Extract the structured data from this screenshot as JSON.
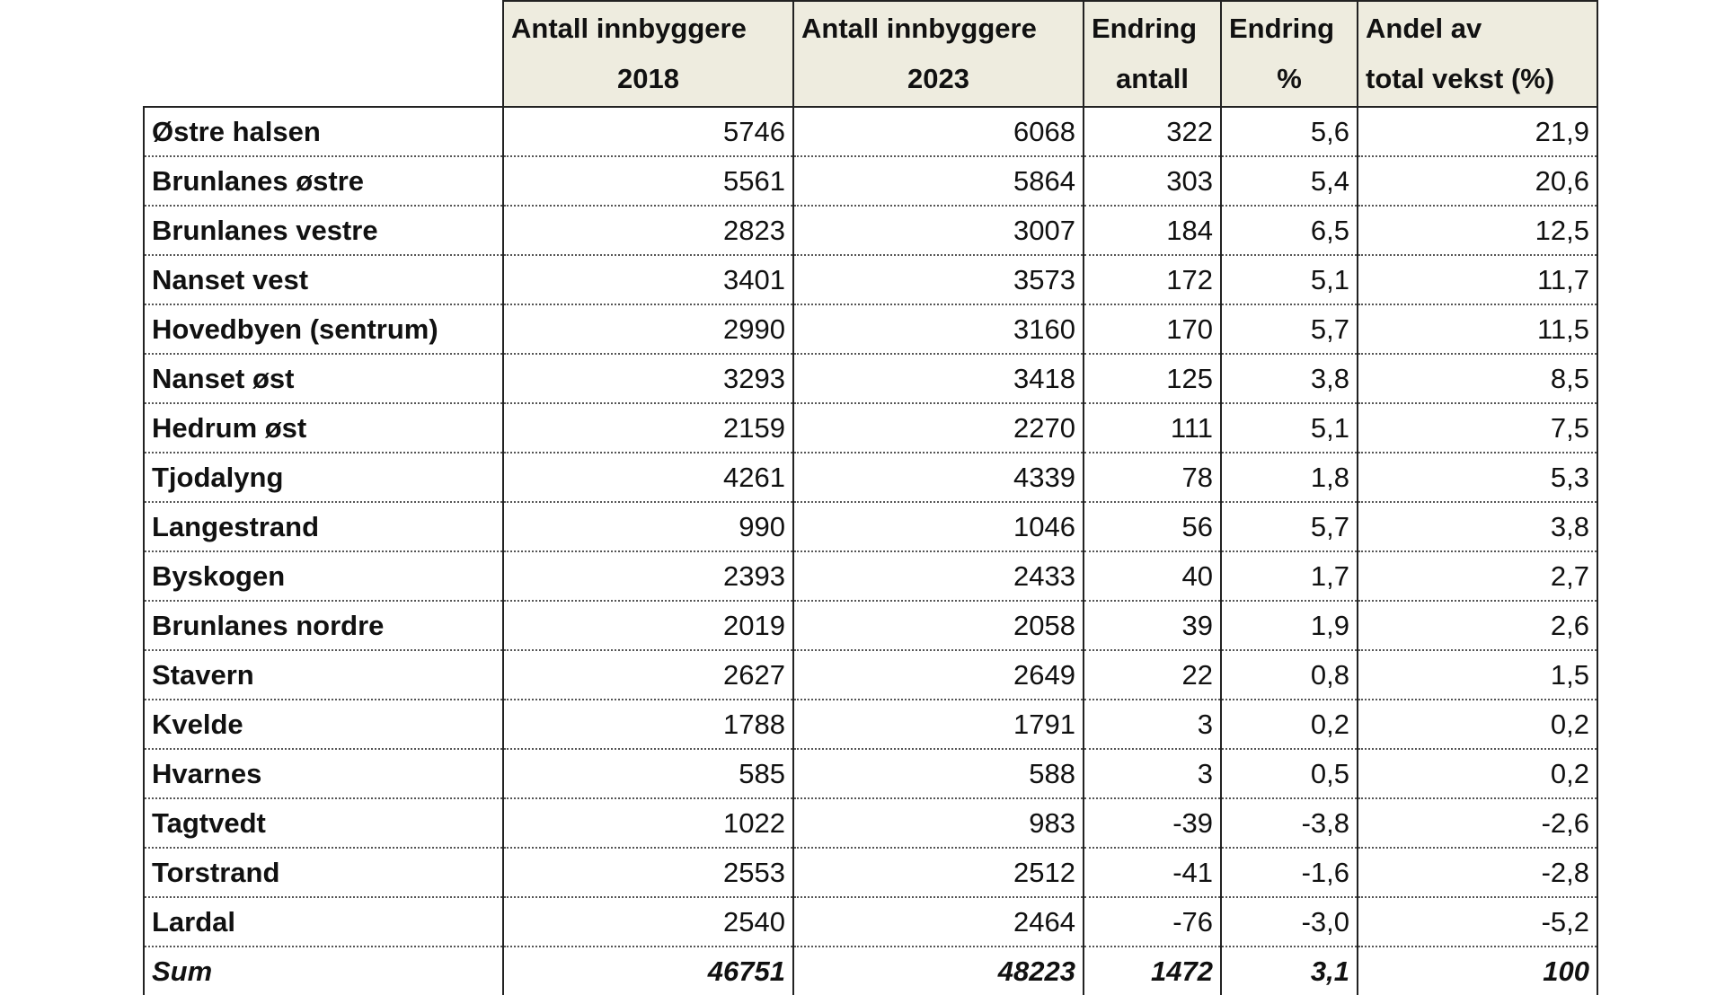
{
  "table": {
    "header": [
      [
        "Antall innbyggere",
        "2018"
      ],
      [
        "Antall innbyggere",
        "2023"
      ],
      [
        "Endring",
        "antall"
      ],
      [
        "Endring",
        "%"
      ],
      [
        "Andel av",
        "total vekst (%)"
      ]
    ],
    "rows": [
      [
        "Østre halsen",
        "5746",
        "6068",
        "322",
        "5,6",
        "21,9"
      ],
      [
        "Brunlanes østre",
        "5561",
        "5864",
        "303",
        "5,4",
        "20,6"
      ],
      [
        "Brunlanes vestre",
        "2823",
        "3007",
        "184",
        "6,5",
        "12,5"
      ],
      [
        "Nanset vest",
        "3401",
        "3573",
        "172",
        "5,1",
        "11,7"
      ],
      [
        "Hovedbyen (sentrum)",
        "2990",
        "3160",
        "170",
        "5,7",
        "11,5"
      ],
      [
        "Nanset øst",
        "3293",
        "3418",
        "125",
        "3,8",
        "8,5"
      ],
      [
        "Hedrum øst",
        "2159",
        "2270",
        "111",
        "5,1",
        "7,5"
      ],
      [
        "Tjodalyng",
        "4261",
        "4339",
        "78",
        "1,8",
        "5,3"
      ],
      [
        "Langestrand",
        "990",
        "1046",
        "56",
        "5,7",
        "3,8"
      ],
      [
        "Byskogen",
        "2393",
        "2433",
        "40",
        "1,7",
        "2,7"
      ],
      [
        "Brunlanes nordre",
        "2019",
        "2058",
        "39",
        "1,9",
        "2,6"
      ],
      [
        "Stavern",
        "2627",
        "2649",
        "22",
        "0,8",
        "1,5"
      ],
      [
        "Kvelde",
        "1788",
        "1791",
        "3",
        "0,2",
        "0,2"
      ],
      [
        "Hvarnes",
        "585",
        "588",
        "3",
        "0,5",
        "0,2"
      ],
      [
        "Tagtvedt",
        "1022",
        "983",
        "-39",
        "-3,8",
        "-2,6"
      ],
      [
        "Torstrand",
        "2553",
        "2512",
        "-41",
        "-1,6",
        "-2,8"
      ],
      [
        "Lardal",
        "2540",
        "2464",
        "-76",
        "-3,0",
        "-5,2"
      ]
    ],
    "sum": [
      "Sum",
      "46751",
      "48223",
      "1472",
      "3,1",
      "100"
    ]
  }
}
